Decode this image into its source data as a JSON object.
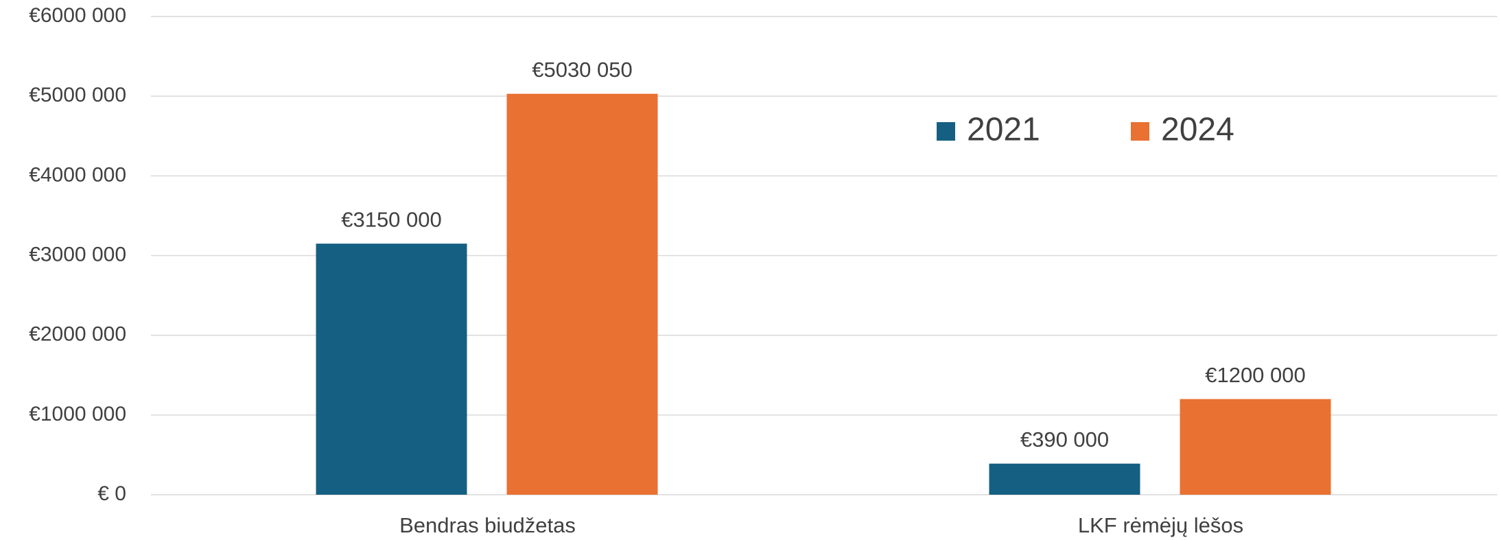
{
  "chart_data": {
    "type": "bar",
    "categories": [
      "Bendras biudžetas",
      "LKF rėmėjų lėšos"
    ],
    "series": [
      {
        "name": "2021",
        "color": "#156082",
        "values": [
          3150000,
          390000
        ],
        "value_labels": [
          "€3150 000",
          "€390 000"
        ]
      },
      {
        "name": "2024",
        "color": "#E97132",
        "values": [
          5030050,
          1200000
        ],
        "value_labels": [
          "€5030 050",
          "€1200 000"
        ]
      }
    ],
    "ylim": [
      0,
      6000000
    ],
    "yticks": [
      {
        "value": 0,
        "label": "€ 0"
      },
      {
        "value": 1000000,
        "label": "€1000 000"
      },
      {
        "value": 2000000,
        "label": "€2000 000"
      },
      {
        "value": 3000000,
        "label": "€3000 000"
      },
      {
        "value": 4000000,
        "label": "€4000 000"
      },
      {
        "value": 5000000,
        "label": "€5000 000"
      },
      {
        "value": 6000000,
        "label": "€6000 000"
      }
    ],
    "grid": true,
    "legend": "top"
  }
}
